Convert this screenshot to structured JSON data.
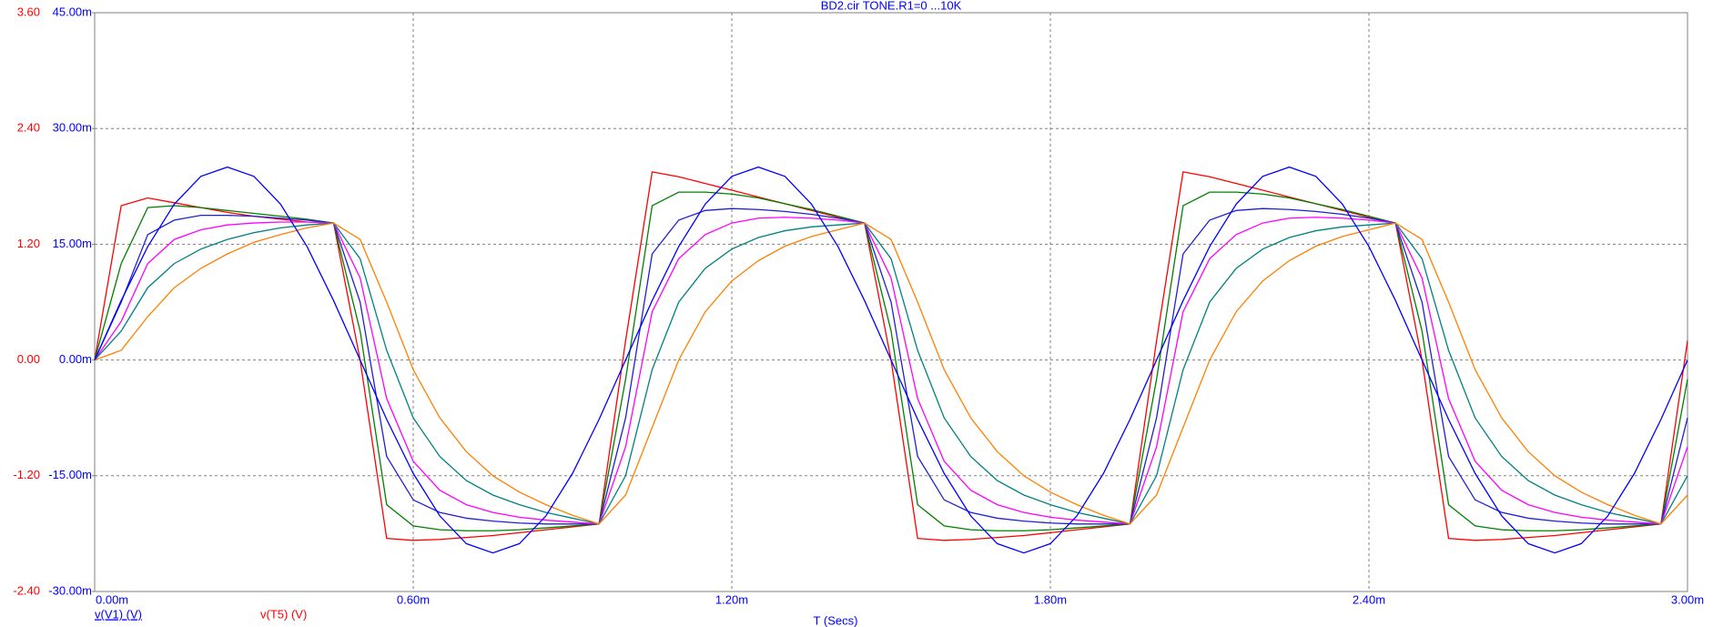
{
  "chart_data": {
    "type": "line",
    "title": "BD2.cir TONE.R1=0 ...10K",
    "xlabel": "T (Secs)",
    "ylabel": "v(T5) (V)",
    "ylabel_color": "#ff0000",
    "y2label_color": "#0000ff",
    "grid": true,
    "xlim": [
      0,
      0.003
    ],
    "xticks": [
      {
        "value": 0,
        "label": "0.00m"
      },
      {
        "value": 0.0006,
        "label": "0.60m"
      },
      {
        "value": 0.0012,
        "label": "1.20m"
      },
      {
        "value": 0.0018,
        "label": "1.80m"
      },
      {
        "value": 0.0024,
        "label": "2.40m"
      },
      {
        "value": 0.003,
        "label": "3.00m"
      }
    ],
    "ylim": [
      -2.4,
      3.6
    ],
    "yticks": [
      {
        "value": -2.4,
        "label": "-2.40"
      },
      {
        "value": -1.2,
        "label": "-1.20"
      },
      {
        "value": 0,
        "label": "0.00"
      },
      {
        "value": 1.2,
        "label": "1.20"
      },
      {
        "value": 2.4,
        "label": "2.40"
      },
      {
        "value": 3.6,
        "label": "3.60"
      }
    ],
    "y2lim": [
      -0.03,
      0.045
    ],
    "y2ticks": [
      {
        "value": -0.03,
        "label": "-30.00m"
      },
      {
        "value": -0.015,
        "label": "-15.00m"
      },
      {
        "value": 0,
        "label": "0.00m"
      },
      {
        "value": 0.015,
        "label": "15.00m"
      },
      {
        "value": 0.03,
        "label": "30.00m"
      },
      {
        "value": 0.045,
        "label": "45.00m"
      }
    ],
    "x": [
      0,
      5e-05,
      0.0001,
      0.00015,
      0.0002,
      0.00025,
      0.0003,
      0.00035,
      0.0004,
      0.00045,
      0.0005,
      0.00055,
      0.0006,
      0.00065,
      0.0007,
      0.00075,
      0.0008,
      0.00085,
      0.0009,
      0.00095,
      0.001,
      0.00105,
      0.0011,
      0.00115,
      0.0012,
      0.00125,
      0.0013,
      0.00135,
      0.0014,
      0.00145,
      0.0015,
      0.00155,
      0.0016,
      0.00165,
      0.0017,
      0.00175,
      0.0018,
      0.00185,
      0.0019,
      0.00195,
      0.002,
      0.00205,
      0.0021,
      0.00215,
      0.0022,
      0.00225,
      0.0023,
      0.00235,
      0.0024,
      0.00245,
      0.0025,
      0.00255,
      0.0026,
      0.00265,
      0.0027,
      0.00275,
      0.0028,
      0.00285,
      0.0029,
      0.00295,
      0.003
    ],
    "series": [
      {
        "color": "#ff0000",
        "values": [
          0,
          1.6,
          1.68,
          1.63,
          1.58,
          1.53,
          1.49,
          1.46,
          1.43,
          1.42,
          0.0,
          -1.85,
          -1.87,
          -1.86,
          -1.84,
          -1.82,
          -1.79,
          -1.76,
          -1.73,
          -1.7,
          0.2,
          1.95,
          1.9,
          1.83,
          1.76,
          1.69,
          1.62,
          1.55,
          1.48,
          1.42,
          0.0,
          -1.85,
          -1.87,
          -1.86,
          -1.84,
          -1.82,
          -1.79,
          -1.76,
          -1.73,
          -1.7,
          0.2,
          1.95,
          1.9,
          1.83,
          1.76,
          1.69,
          1.62,
          1.55,
          1.48,
          1.42,
          0.0,
          -1.85,
          -1.87,
          -1.86,
          -1.84,
          -1.82,
          -1.79,
          -1.76,
          -1.73,
          -1.7,
          0.2
        ]
      },
      {
        "color": "#008000",
        "values": [
          0,
          1.0,
          1.58,
          1.6,
          1.58,
          1.55,
          1.52,
          1.49,
          1.46,
          1.42,
          0.3,
          -1.5,
          -1.72,
          -1.76,
          -1.77,
          -1.77,
          -1.76,
          -1.74,
          -1.72,
          -1.7,
          -0.2,
          1.6,
          1.74,
          1.74,
          1.72,
          1.68,
          1.62,
          1.56,
          1.49,
          1.42,
          0.3,
          -1.5,
          -1.72,
          -1.76,
          -1.77,
          -1.77,
          -1.76,
          -1.74,
          -1.72,
          -1.7,
          -0.2,
          1.6,
          1.74,
          1.74,
          1.72,
          1.68,
          1.62,
          1.56,
          1.49,
          1.42,
          0.3,
          -1.5,
          -1.72,
          -1.76,
          -1.77,
          -1.77,
          -1.76,
          -1.74,
          -1.72,
          -1.7,
          -0.2
        ]
      },
      {
        "color": "#2020d0",
        "values": [
          0,
          0.6,
          1.3,
          1.45,
          1.5,
          1.5,
          1.49,
          1.47,
          1.45,
          1.42,
          0.6,
          -1.0,
          -1.45,
          -1.58,
          -1.64,
          -1.67,
          -1.69,
          -1.7,
          -1.7,
          -1.7,
          -0.6,
          1.1,
          1.45,
          1.55,
          1.57,
          1.56,
          1.54,
          1.51,
          1.47,
          1.42,
          0.6,
          -1.0,
          -1.45,
          -1.58,
          -1.64,
          -1.67,
          -1.69,
          -1.7,
          -1.7,
          -1.7,
          -0.6,
          1.1,
          1.45,
          1.55,
          1.57,
          1.56,
          1.54,
          1.51,
          1.47,
          1.42,
          0.6,
          -1.0,
          -1.45,
          -1.58,
          -1.64,
          -1.67,
          -1.69,
          -1.7,
          -1.7,
          -1.7,
          -0.6
        ]
      },
      {
        "color": "#ff00ff",
        "values": [
          0,
          0.4,
          1.0,
          1.25,
          1.35,
          1.4,
          1.42,
          1.43,
          1.43,
          1.42,
          0.85,
          -0.4,
          -1.05,
          -1.35,
          -1.5,
          -1.58,
          -1.63,
          -1.66,
          -1.68,
          -1.7,
          -0.9,
          0.5,
          1.05,
          1.3,
          1.42,
          1.47,
          1.48,
          1.47,
          1.45,
          1.42,
          0.85,
          -0.4,
          -1.05,
          -1.35,
          -1.5,
          -1.58,
          -1.63,
          -1.66,
          -1.68,
          -1.7,
          -0.9,
          0.5,
          1.05,
          1.3,
          1.42,
          1.47,
          1.48,
          1.47,
          1.45,
          1.42,
          0.85,
          -0.4,
          -1.05,
          -1.35,
          -1.5,
          -1.58,
          -1.63,
          -1.66,
          -1.68,
          -1.7,
          -0.9
        ]
      },
      {
        "color": "#008080",
        "values": [
          0,
          0.3,
          0.75,
          1.0,
          1.15,
          1.25,
          1.32,
          1.37,
          1.4,
          1.42,
          1.05,
          0.1,
          -0.6,
          -1.0,
          -1.25,
          -1.4,
          -1.5,
          -1.58,
          -1.64,
          -1.7,
          -1.2,
          -0.1,
          0.6,
          0.95,
          1.15,
          1.27,
          1.34,
          1.38,
          1.4,
          1.42,
          1.05,
          0.1,
          -0.6,
          -1.0,
          -1.25,
          -1.4,
          -1.5,
          -1.58,
          -1.64,
          -1.7,
          -1.2,
          -0.1,
          0.6,
          0.95,
          1.15,
          1.27,
          1.34,
          1.38,
          1.4,
          1.42,
          1.05,
          0.1,
          -0.6,
          -1.0,
          -1.25,
          -1.4,
          -1.5,
          -1.58,
          -1.64,
          -1.7,
          -1.2
        ]
      },
      {
        "color": "#ff8000",
        "values": [
          0,
          0.1,
          0.45,
          0.75,
          0.95,
          1.1,
          1.22,
          1.3,
          1.37,
          1.42,
          1.25,
          0.6,
          -0.1,
          -0.6,
          -0.95,
          -1.2,
          -1.37,
          -1.5,
          -1.61,
          -1.7,
          -1.4,
          -0.7,
          0.0,
          0.5,
          0.82,
          1.03,
          1.18,
          1.28,
          1.35,
          1.42,
          1.25,
          0.6,
          -0.1,
          -0.6,
          -0.95,
          -1.2,
          -1.37,
          -1.5,
          -1.61,
          -1.7,
          -1.4,
          -0.7,
          0.0,
          0.5,
          0.82,
          1.03,
          1.18,
          1.28,
          1.35,
          1.42,
          1.25,
          0.6,
          -0.1,
          -0.6,
          -0.95,
          -1.2,
          -1.37,
          -1.5,
          -1.61,
          -1.7,
          -1.4
        ]
      },
      {
        "name": "v(V1) (V)",
        "color": "#0000ff",
        "axis": "y2",
        "values": [
          0,
          0.0077,
          0.0147,
          0.0202,
          0.0238,
          0.025,
          0.0238,
          0.0202,
          0.0147,
          0.0077,
          0,
          -0.0077,
          -0.0147,
          -0.0202,
          -0.0238,
          -0.025,
          -0.0238,
          -0.0202,
          -0.0147,
          -0.0077,
          0,
          0.0077,
          0.0147,
          0.0202,
          0.0238,
          0.025,
          0.0238,
          0.0202,
          0.0147,
          0.0077,
          0,
          -0.0077,
          -0.0147,
          -0.0202,
          -0.0238,
          -0.025,
          -0.0238,
          -0.0202,
          -0.0147,
          -0.0077,
          0,
          0.0077,
          0.0147,
          0.0202,
          0.0238,
          0.025,
          0.0238,
          0.0202,
          0.0147,
          0.0077,
          0,
          -0.0077,
          -0.0147,
          -0.0202,
          -0.0238,
          -0.025,
          -0.0238,
          -0.0202,
          -0.0147,
          -0.0077,
          0
        ]
      }
    ]
  }
}
